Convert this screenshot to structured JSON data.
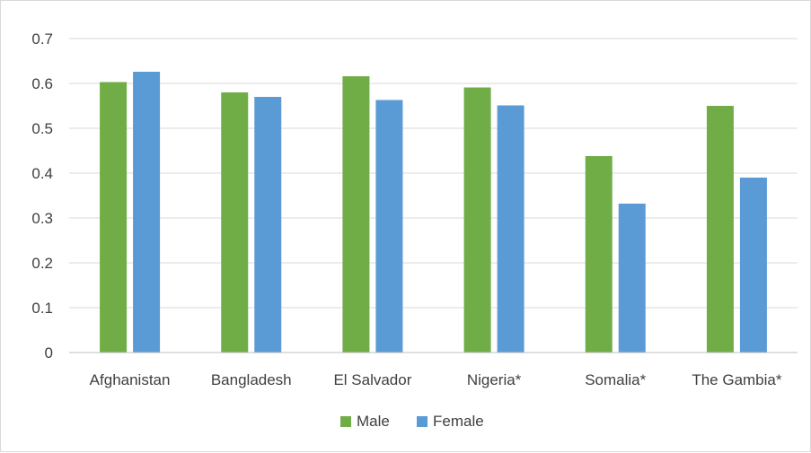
{
  "chart_data": {
    "type": "bar",
    "title": "",
    "xlabel": "",
    "ylabel": "",
    "categories": [
      "Afghanistan",
      "Bangladesh",
      "El Salvador",
      "Nigeria*",
      "Somalia*",
      "The Gambia*"
    ],
    "series": [
      {
        "name": "Male",
        "color": "#70ad47",
        "values": [
          0.603,
          0.58,
          0.616,
          0.591,
          0.438,
          0.55
        ]
      },
      {
        "name": "Female",
        "color": "#5b9bd5",
        "values": [
          0.626,
          0.57,
          0.563,
          0.551,
          0.332,
          0.39
        ]
      }
    ],
    "ylim": [
      0,
      0.7
    ],
    "yticks": [
      "0",
      "0.1",
      "0.2",
      "0.3",
      "0.4",
      "0.5",
      "0.6",
      "0.7"
    ],
    "grid": true,
    "legend_position": "bottom",
    "gridline_color": "#d9d9d9",
    "axis_color": "#bfbfbf"
  }
}
